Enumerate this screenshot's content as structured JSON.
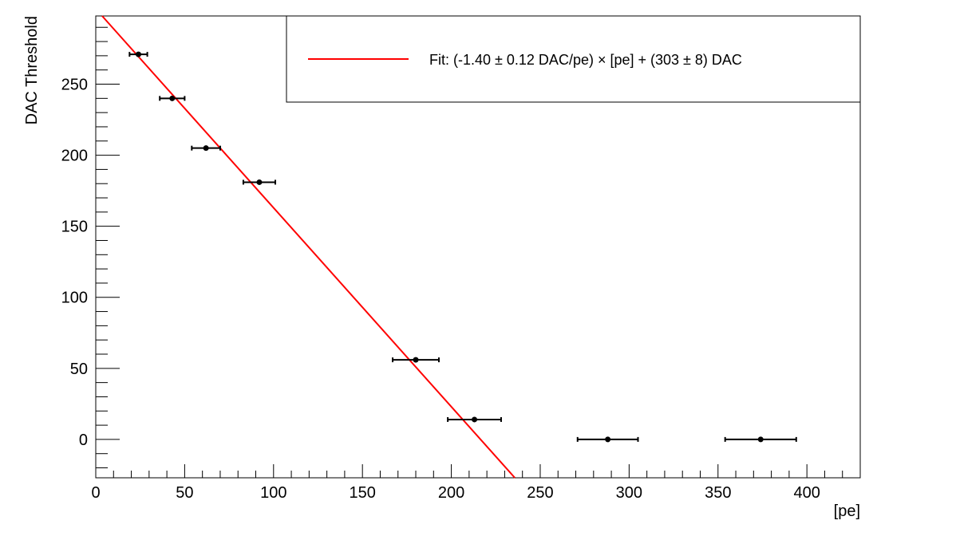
{
  "chart_data": {
    "type": "scatter",
    "title": "",
    "xlabel": "[pe]",
    "ylabel": "DAC Threshold",
    "xlim": [
      0,
      430
    ],
    "ylim": [
      -27,
      298
    ],
    "x_ticks": [
      0,
      50,
      100,
      150,
      200,
      250,
      300,
      350,
      400
    ],
    "x_tick_labels": [
      "0",
      "50",
      "100",
      "150",
      "200",
      "250",
      "300",
      "350",
      "400"
    ],
    "y_ticks": [
      0,
      50,
      100,
      150,
      200,
      250
    ],
    "y_tick_labels": [
      "0",
      "50",
      "100",
      "150",
      "200",
      "250"
    ],
    "grid": false,
    "legend_position": "top-right",
    "series": [
      {
        "kind": "points",
        "color": "#000000",
        "points": [
          {
            "x": 24,
            "y": 271,
            "xerr": 5
          },
          {
            "x": 43,
            "y": 240,
            "xerr": 7
          },
          {
            "x": 62,
            "y": 205,
            "xerr": 8
          },
          {
            "x": 92,
            "y": 181,
            "xerr": 9
          },
          {
            "x": 180,
            "y": 56,
            "xerr": 13
          },
          {
            "x": 213,
            "y": 14,
            "xerr": 15
          },
          {
            "x": 288,
            "y": 0,
            "xerr": 17
          },
          {
            "x": 374,
            "y": 0,
            "xerr": 20
          }
        ]
      },
      {
        "kind": "fit",
        "name": "Fit: (-1.40 ± 0.12 DAC/pe) × [pe] + (303 ± 8) DAC",
        "color": "#ff0000",
        "slope": -1.4,
        "intercept": 303
      }
    ]
  }
}
